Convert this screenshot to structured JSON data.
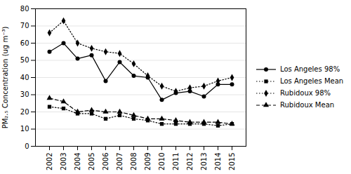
{
  "chart_data": {
    "type": "line",
    "x": [
      2002,
      2003,
      2004,
      2005,
      2006,
      2007,
      2008,
      2009,
      2010,
      2011,
      2012,
      2013,
      2014,
      2015
    ],
    "series": [
      {
        "name": "Los Angeles 98%",
        "color": "#000000",
        "marker": "circle",
        "line_style": "solid",
        "values": [
          55,
          60,
          51,
          53,
          38,
          49,
          41,
          40,
          27,
          31,
          32,
          29,
          36,
          36
        ]
      },
      {
        "name": "Los Angeles Mean",
        "color": "#000000",
        "marker": "square",
        "line_style": "dotted",
        "values": [
          23,
          22,
          19,
          19,
          16,
          18,
          16,
          15,
          13,
          13,
          13,
          13,
          12,
          13
        ]
      },
      {
        "name": "Rubidoux 98%",
        "color": "#000000",
        "marker": "diamond",
        "line_style": "dotted",
        "values": [
          66,
          73,
          60,
          57,
          55,
          54,
          48,
          41,
          35,
          32,
          34,
          35,
          38,
          40
        ]
      },
      {
        "name": "Rubidoux Mean",
        "color": "#000000",
        "marker": "triangle",
        "line_style": "dashed",
        "values": [
          28,
          26,
          20,
          21,
          20,
          20,
          18,
          16,
          16,
          15,
          14,
          14,
          14,
          13
        ]
      }
    ],
    "ylabel": "PM₂.₅ Concentration (ug m⁻³)",
    "xlim": [
      2001,
      2016
    ],
    "xticks": [
      2002,
      2003,
      2004,
      2005,
      2006,
      2007,
      2008,
      2009,
      2010,
      2011,
      2012,
      2013,
      2014,
      2015
    ],
    "ylim": [
      0,
      80
    ],
    "yticks": [
      0,
      10,
      20,
      30,
      40,
      50,
      60,
      70,
      80
    ],
    "grid": "y",
    "legend": "right"
  }
}
